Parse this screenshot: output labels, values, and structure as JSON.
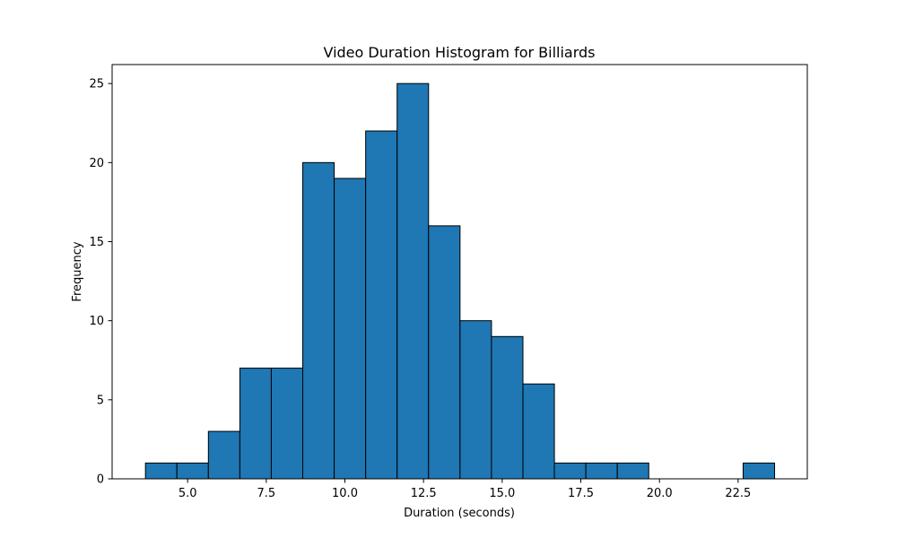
{
  "chart_data": {
    "type": "bar",
    "title": "Video Duration Histogram for Billiards",
    "xlabel": "Duration (seconds)",
    "ylabel": "Frequency",
    "xlim": [
      2.6,
      24.7
    ],
    "ylim": [
      0,
      26.2
    ],
    "x_ticks": [
      5.0,
      7.5,
      10.0,
      12.5,
      15.0,
      17.5,
      20.0,
      22.5
    ],
    "x_tick_labels": [
      "5.0",
      "7.5",
      "10.0",
      "12.5",
      "15.0",
      "17.5",
      "20.0",
      "22.5"
    ],
    "y_ticks": [
      0,
      5,
      10,
      15,
      20,
      25
    ],
    "y_tick_labels": [
      "0",
      "5",
      "10",
      "15",
      "20",
      "25"
    ],
    "bin_edges": [
      3.66,
      4.66,
      5.66,
      6.66,
      7.66,
      8.66,
      9.66,
      10.66,
      11.66,
      12.66,
      13.66,
      14.66,
      15.66,
      16.66,
      17.66,
      18.66,
      19.66,
      20.66,
      21.66,
      22.66,
      23.66
    ],
    "values": [
      1,
      1,
      3,
      7,
      7,
      20,
      19,
      22,
      25,
      16,
      10,
      9,
      6,
      1,
      1,
      1,
      0,
      0,
      0,
      1
    ],
    "bar_color": "#1f77b4",
    "edge_color": "#000000",
    "grid": false,
    "legend": "none"
  }
}
